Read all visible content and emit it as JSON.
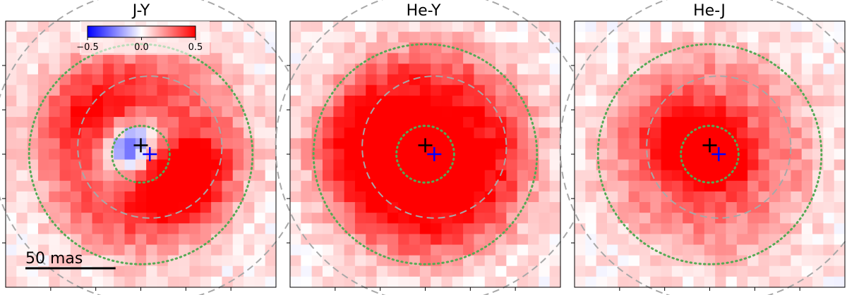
{
  "chart_data": [
    {
      "type": "heatmap",
      "title": "J-Y",
      "extent_mas": [
        -75,
        75
      ],
      "grid_cells": 25,
      "blobs": [
        {
          "x": -5,
          "y": 5,
          "sx": 9,
          "sy": 9,
          "amp": -0.55
        },
        {
          "x": 22,
          "y": -9,
          "sx": 14,
          "sy": 12,
          "amp": 0.6
        },
        {
          "x": -16,
          "y": 22,
          "sx": 22,
          "sy": 18,
          "amp": 0.25
        },
        {
          "x": 8,
          "y": -26,
          "sx": 18,
          "sy": 12,
          "amp": 0.22
        }
      ],
      "ring": {
        "x": 0,
        "y": 2,
        "r": 40,
        "w": 16,
        "amp": 0.24
      },
      "noise": 0.07,
      "markers": [
        {
          "x": 0,
          "y": 5,
          "color": "#000000"
        },
        {
          "x": 5,
          "y": 0,
          "color": "#0000ff"
        }
      ],
      "dotted_circles_r": [
        16,
        62
      ],
      "dashed_circles_r": [
        40,
        88
      ],
      "dashed_center": [
        5,
        4
      ]
    },
    {
      "type": "heatmap",
      "title": "He-Y",
      "extent_mas": [
        -75,
        75
      ],
      "grid_cells": 25,
      "blobs": [
        {
          "x": 4,
          "y": -4,
          "sx": 18,
          "sy": 18,
          "amp": 0.8
        },
        {
          "x": -20,
          "y": 8,
          "sx": 20,
          "sy": 18,
          "amp": 0.35
        }
      ],
      "ring": {
        "x": 0,
        "y": 0,
        "r": 42,
        "w": 16,
        "amp": 0.32
      },
      "noise": 0.07,
      "markers": [
        {
          "x": 0,
          "y": 5,
          "color": "#000000"
        },
        {
          "x": 5,
          "y": 0,
          "color": "#0000ff"
        }
      ],
      "dotted_circles_r": [
        16,
        62
      ],
      "dashed_circles_r": [
        40,
        88
      ],
      "dashed_center": [
        5,
        4
      ]
    },
    {
      "type": "heatmap",
      "title": "He-J",
      "extent_mas": [
        -75,
        75
      ],
      "grid_cells": 25,
      "blobs": [
        {
          "x": 0,
          "y": 0,
          "sx": 15,
          "sy": 15,
          "amp": 0.85
        },
        {
          "x": -18,
          "y": 10,
          "sx": 18,
          "sy": 16,
          "amp": 0.2
        }
      ],
      "ring": {
        "x": 0,
        "y": 0,
        "r": 40,
        "w": 16,
        "amp": 0.18
      },
      "noise": 0.07,
      "markers": [
        {
          "x": 0,
          "y": 5,
          "color": "#000000"
        },
        {
          "x": 5,
          "y": 0,
          "color": "#0000ff"
        }
      ],
      "dotted_circles_r": [
        16,
        62
      ],
      "dashed_circles_r": [
        40,
        88
      ],
      "dashed_center": [
        5,
        4
      ]
    }
  ],
  "colorbar": {
    "colormap": "bwr",
    "vmin": -0.5,
    "vmax": 0.5,
    "ticks": [
      "−0.5",
      "0.0",
      "0.5"
    ]
  },
  "scalebar": {
    "label": "50 mas",
    "length_mas": 50
  },
  "colors": {
    "dotted_circle": "#55aa55",
    "dashed_circle": "#a8a8a8",
    "negative": "#0000ff",
    "positive": "#ff0000"
  }
}
